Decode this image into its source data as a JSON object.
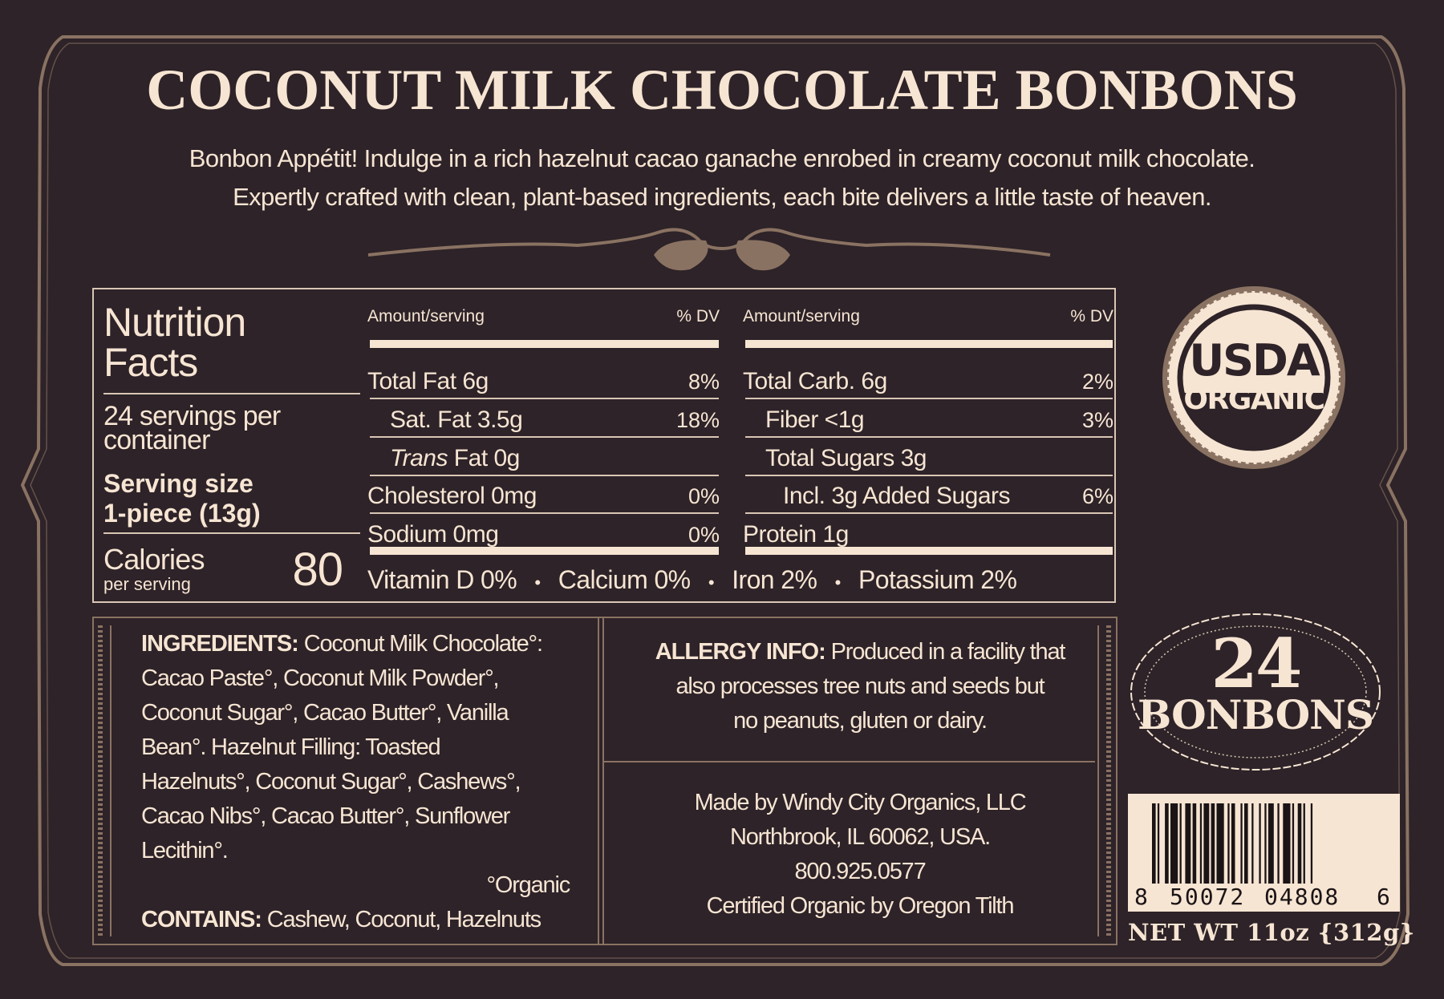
{
  "title": "COCONUT MILK CHOCOLATE BONBONS",
  "description": [
    "Bonbon Appétit! Indulge in a rich hazelnut cacao ganache enrobed in creamy coconut milk chocolate.",
    "Expertly crafted with clean, plant-based ingredients, each bite delivers a little taste of heaven."
  ],
  "colors": {
    "background": "#2d2328",
    "cream": "#f7e5d3",
    "accent_brown": "#8a7262"
  },
  "nutrition": {
    "heading_line1": "Nutrition",
    "heading_line2": "Facts",
    "servings_line1": "24 servings per",
    "servings_line2": "container",
    "serving_size_label": "Serving size",
    "serving_size_value": "1-piece (13g)",
    "calories_label": "Calories",
    "calories_sub": "per serving",
    "calories_value": "80",
    "amount_header": "Amount/serving",
    "dv_header": "% DV",
    "left_rows": [
      {
        "label": "Total Fat 6g",
        "dv": "8%"
      },
      {
        "label": "Sat. Fat 3.5g",
        "dv": "18%"
      },
      {
        "label_italic": "Trans",
        "label": " Fat 0g",
        "dv": ""
      },
      {
        "label": "Cholesterol 0mg",
        "dv": "0%"
      },
      {
        "label": "Sodium 0mg",
        "dv": "0%"
      }
    ],
    "right_rows": [
      {
        "label": "Total Carb. 6g",
        "dv": "2%"
      },
      {
        "label": "Fiber <1g",
        "dv": "3%"
      },
      {
        "label": "Total Sugars 3g",
        "dv": ""
      },
      {
        "label": "Incl. 3g Added Sugars",
        "dv": "6%"
      },
      {
        "label": "Protein 1g",
        "dv": ""
      }
    ],
    "micronutrients": [
      "Vitamin D 0%",
      "Calcium 0%",
      "Iron 2%",
      "Potassium 2%"
    ],
    "separator": "•"
  },
  "seal": {
    "top": "USDA",
    "bottom": "ORGANIC"
  },
  "count_badge": {
    "number": "24",
    "label": "BONBONS"
  },
  "ingredients": {
    "heading": "INGREDIENTS:",
    "lines": [
      " Coconut Milk Chocolate°:",
      "Cacao Paste°, Coconut Milk Powder°,",
      "Coconut Sugar°, Cacao Butter°, Vanilla",
      "Bean°.  Hazelnut Filling: Toasted",
      "Hazelnuts°, Coconut Sugar°, Cashews°,",
      "Cacao Nibs°, Cacao Butter°, Sunflower",
      "Lecithin°."
    ],
    "organic_note": "°Organic",
    "contains_label": "CONTAINS:",
    "contains_value": " Cashew, Coconut, Hazelnuts"
  },
  "allergy": {
    "label": "ALLERGY INFO:",
    "lines": [
      " Produced in a facility that",
      "also processes tree nuts and seeds but",
      "no peanuts, gluten or dairy."
    ]
  },
  "maker": {
    "lines": [
      "Made by Windy City Organics, LLC",
      "Northbrook, IL 60062, USA.",
      "800.925.0577",
      "Certified Organic by Oregon Tilth"
    ]
  },
  "barcode": {
    "digits": [
      "8",
      "50072",
      "04808",
      "6"
    ]
  },
  "net_weight": "NET WT 11oz {312g}"
}
